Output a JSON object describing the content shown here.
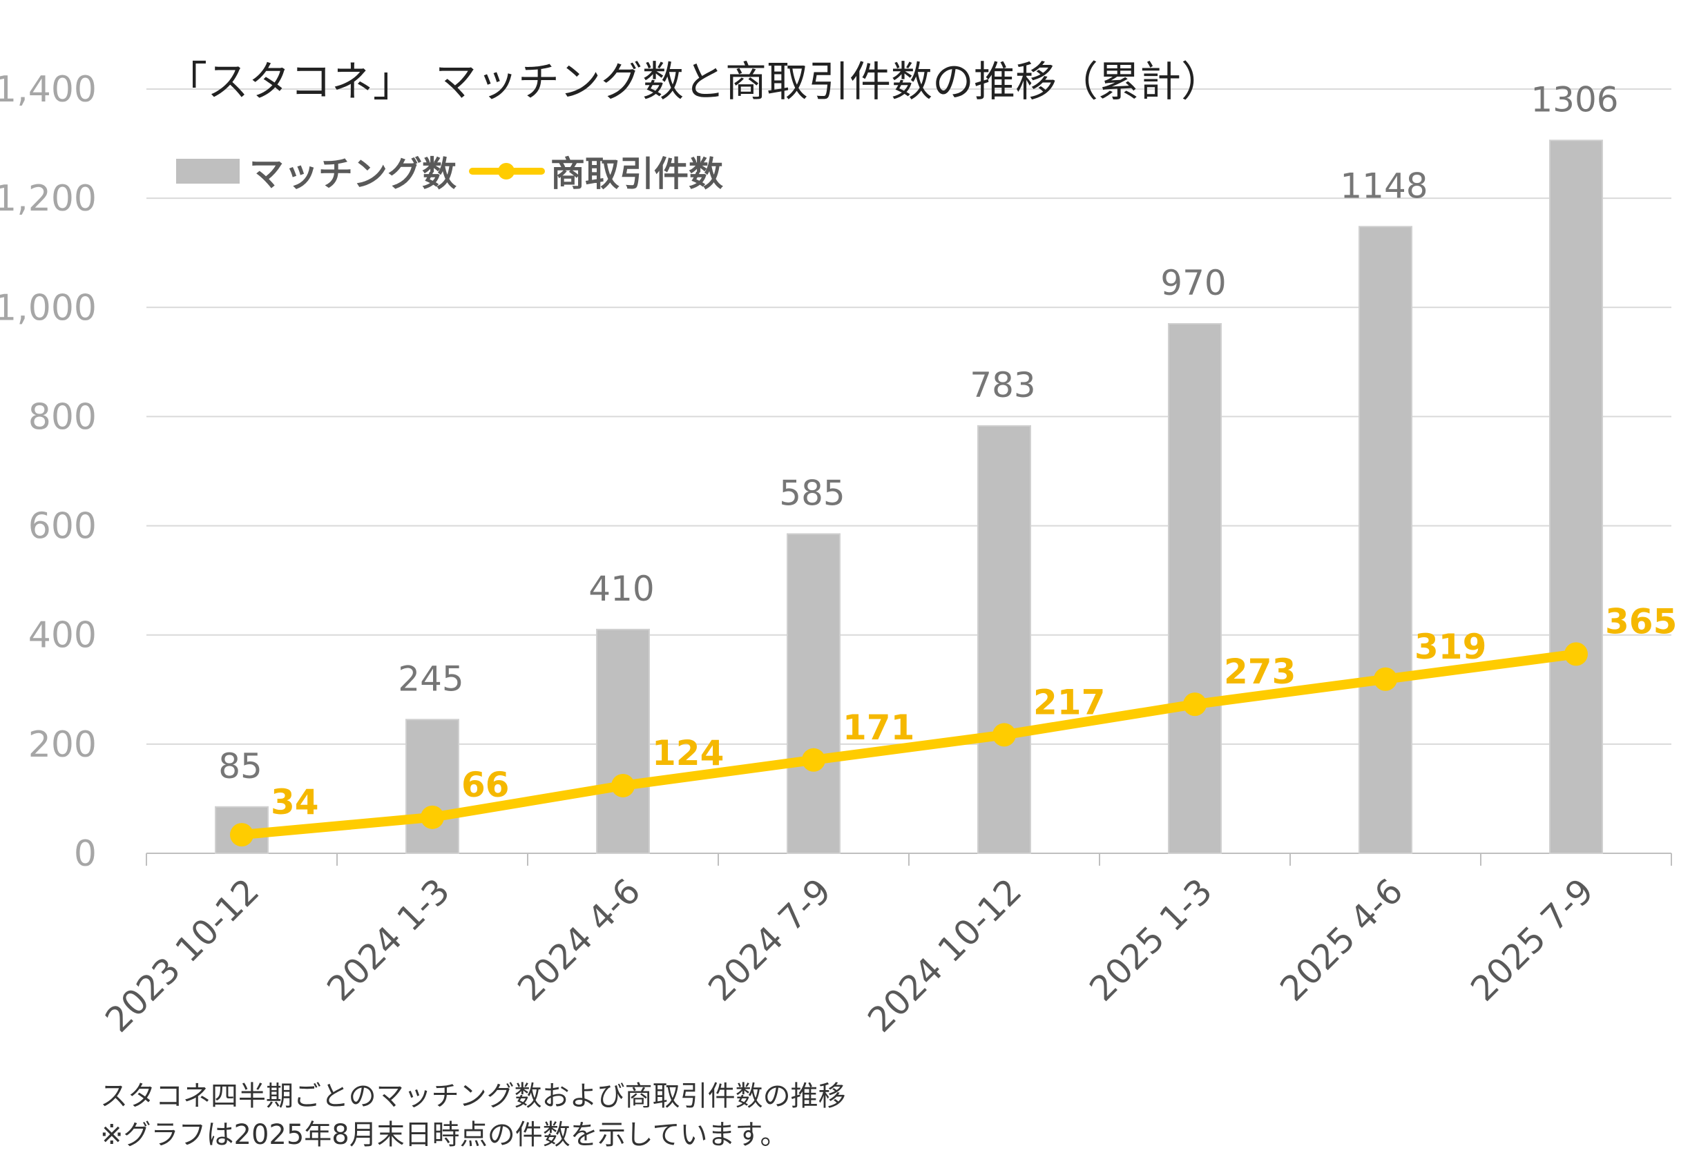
{
  "chart_data": {
    "type": "bar+line",
    "title": "「スタコネ」　マッチング数と商取引件数の推移（累計）",
    "categories": [
      "2023 10-12",
      "2024 1-3",
      "2024 4-6",
      "2024 7-9",
      "2024 10-12",
      "2025 1-3",
      "2025 4-6",
      "2025 7-9"
    ],
    "series": [
      {
        "name": "マッチング数",
        "type": "bar",
        "color": "#bfbfbf",
        "label_color": "#767676",
        "values": [
          85,
          245,
          410,
          585,
          783,
          970,
          1148,
          1306
        ]
      },
      {
        "name": "商取引件数",
        "type": "line",
        "color": "#ffcc00",
        "label_color": "#f5b800",
        "values": [
          34,
          66,
          124,
          171,
          217,
          273,
          319,
          365
        ]
      }
    ],
    "ylim": [
      0,
      1400
    ],
    "yticks": [
      0,
      200,
      400,
      600,
      800,
      1000,
      1200,
      1400
    ],
    "ytick_labels": [
      "0",
      "200",
      "400",
      "600",
      "800",
      "1,000",
      "1,200",
      "1,400"
    ],
    "xlabel": "",
    "ylabel": "",
    "grid": true,
    "legend": "top-left"
  },
  "footnote": {
    "line1": "スタコネ四半期ごとのマッチング数および商取引件数の推移",
    "line2": "※グラフは2025年8月末日時点の件数を示しています。"
  }
}
